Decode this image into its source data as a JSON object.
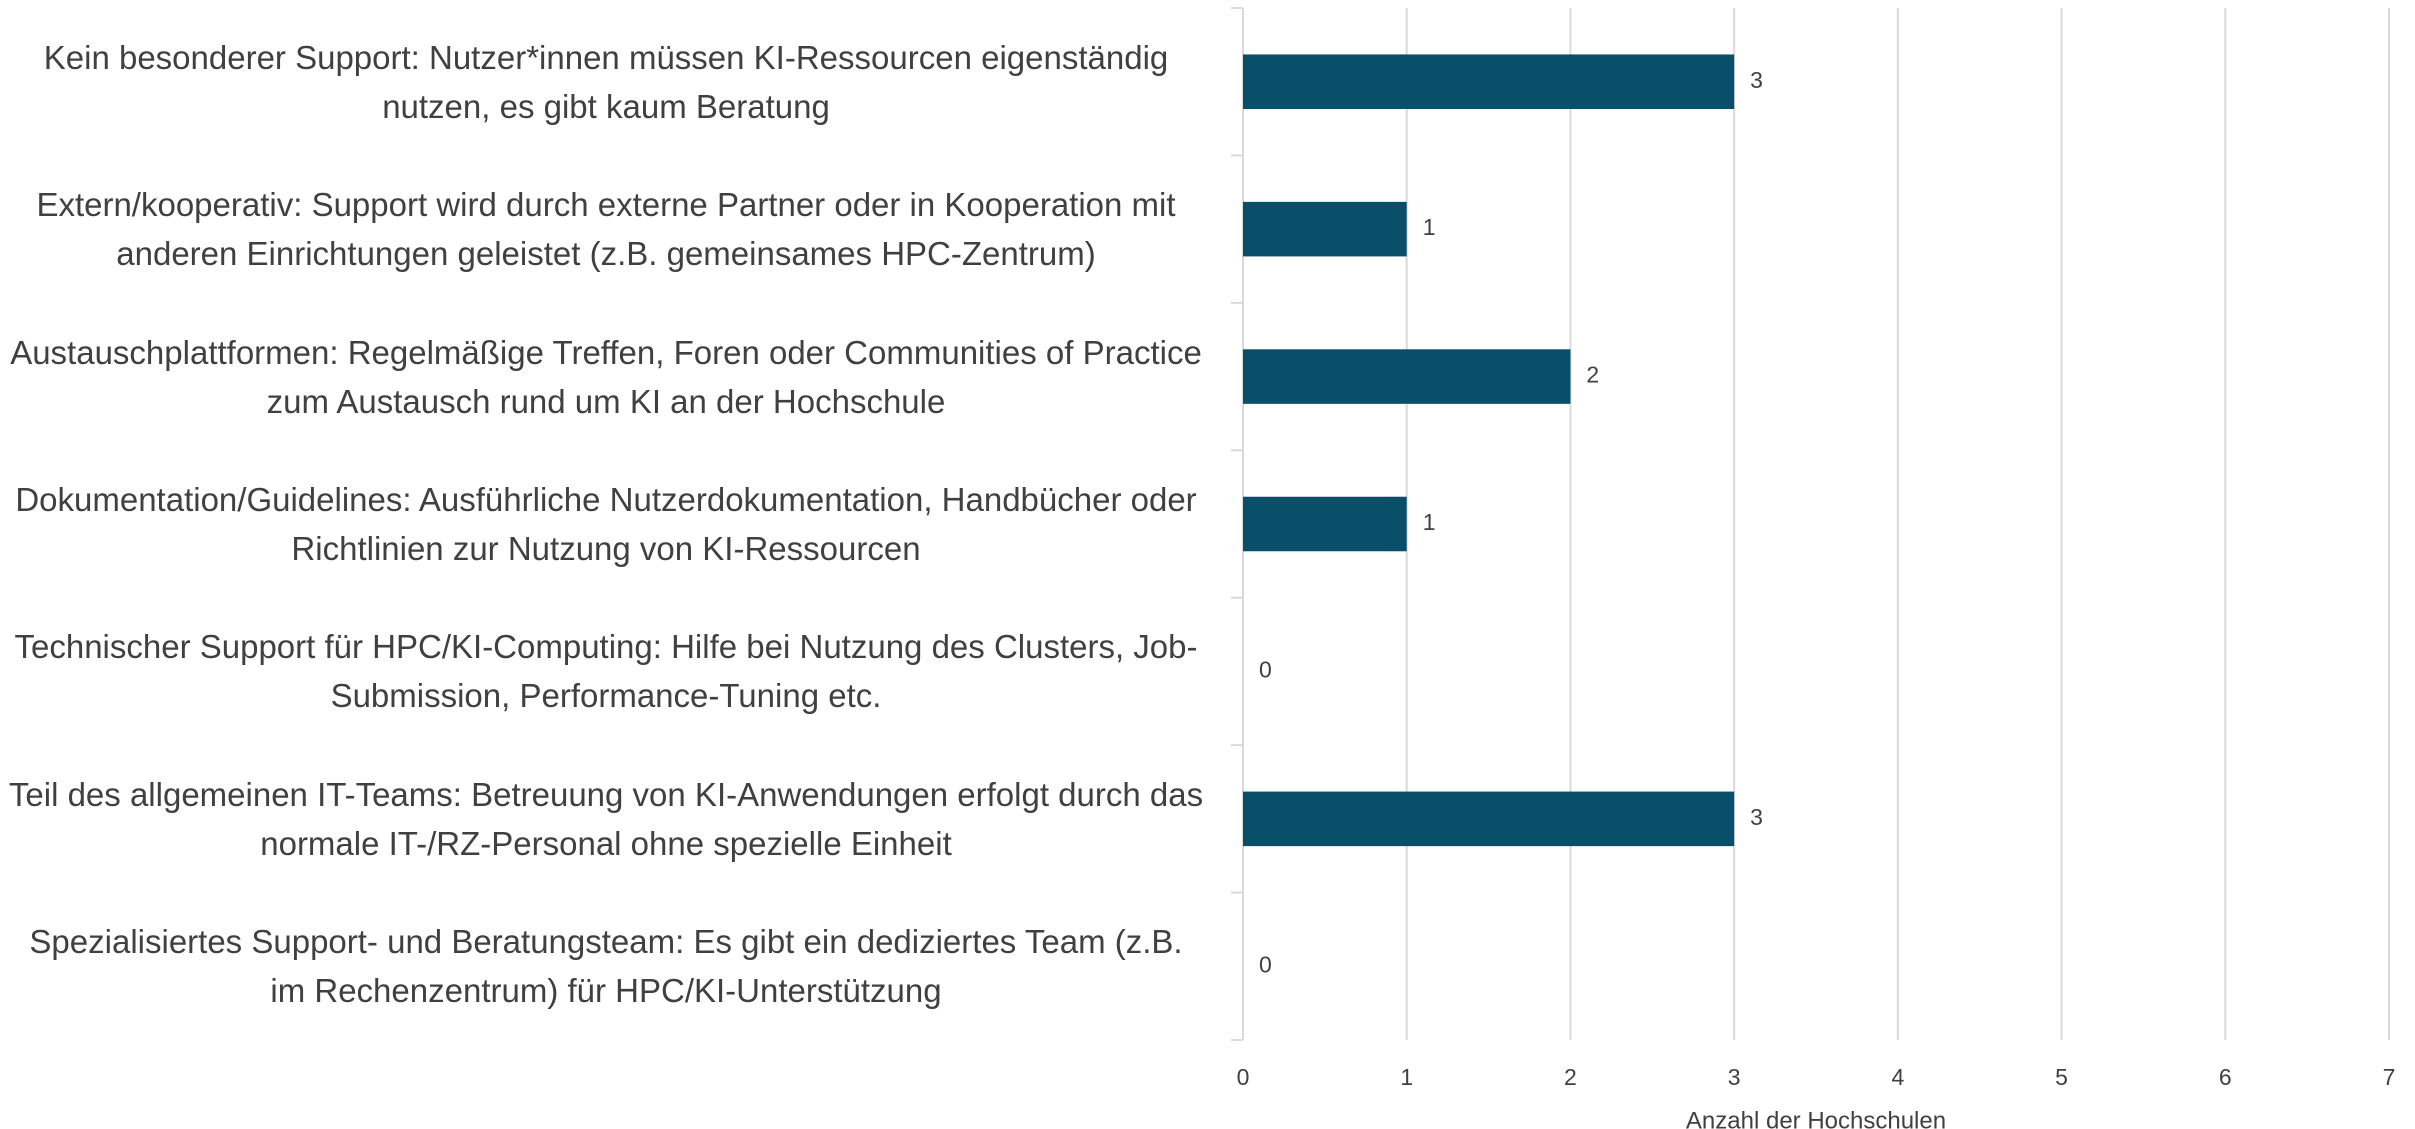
{
  "chart_data": {
    "type": "barh",
    "categories": [
      "Kein besonderer Support: Nutzer*innen müssen KI-Ressourcen eigenständig nutzen, es gibt kaum Beratung",
      "Extern/kooperativ: Support wird durch externe Partner oder in Kooperation mit anderen Einrichtungen geleistet (z.B. gemeinsames HPC-Zentrum)",
      "Austauschplattformen: Regelmäßige Treffen, Foren oder Communities of Practice zum Austausch rund um KI an der Hochschule",
      "Dokumentation/Guidelines: Ausführliche Nutzerdokumentation, Handbücher oder Richtlinien zur Nutzung von KI-Ressourcen",
      "Technischer Support für HPC/KI-Computing: Hilfe bei Nutzung des Clusters, Job-Submission, Performance-Tuning etc.",
      "Teil des allgemeinen IT-Teams: Betreuung von KI-Anwendungen erfolgt durch das normale IT-/RZ-Personal ohne spezielle Einheit",
      "Spezialisiertes Support- und Beratungsteam: Es gibt ein dediziertes Team (z.B. im Rechenzentrum) für HPC/KI-Unterstützung"
    ],
    "values": [
      3,
      1,
      2,
      1,
      0,
      3,
      0
    ],
    "color": "#0a4f69",
    "xlabel": "Anzahl der Hochschulen",
    "xlim": [
      0,
      7
    ],
    "xticks": [
      0,
      1,
      2,
      3,
      4,
      5,
      6,
      7
    ],
    "grid": true
  }
}
